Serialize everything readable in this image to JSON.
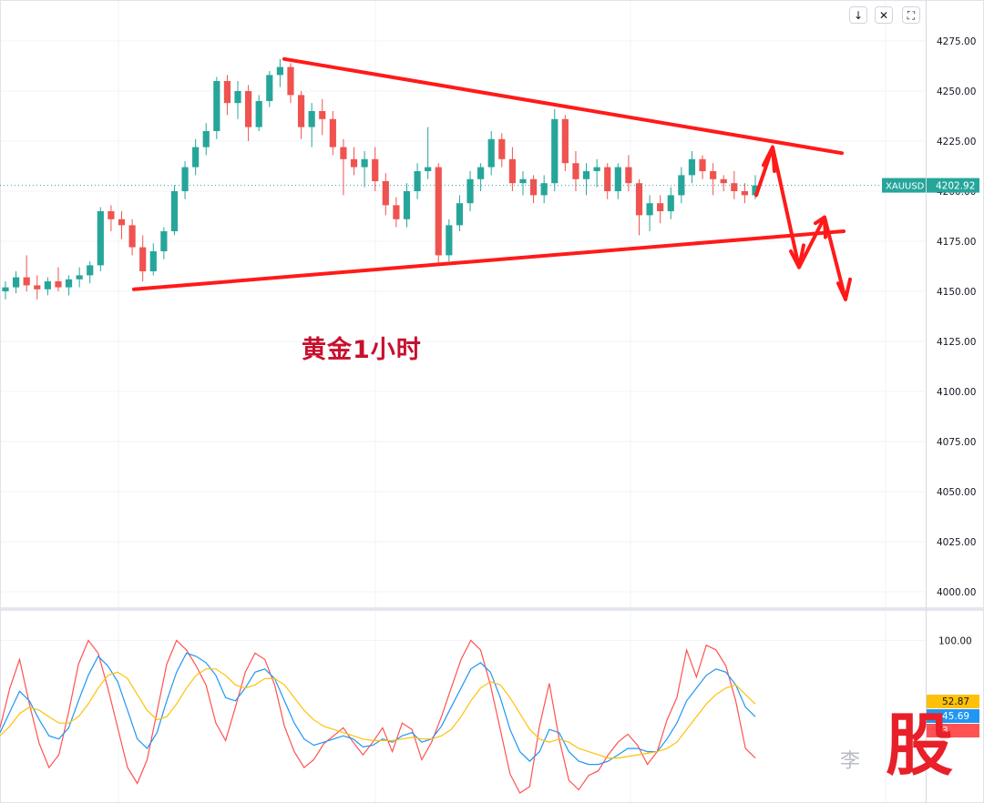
{
  "chart_data": [
    {
      "type": "candlestick",
      "title": "黄金1小时",
      "symbol": "XAUUSD",
      "last_price": "4202.92",
      "ylim": [
        3990,
        4285
      ],
      "yticks": [
        "4275.00",
        "4250.00",
        "4225.00",
        "4200.00",
        "4175.00",
        "4150.00",
        "4125.00",
        "4100.00",
        "4075.00",
        "4050.00",
        "4025.00",
        "4000.00"
      ],
      "up_color": "#26a69a",
      "down_color": "#ef5350",
      "annotation_color": "#ff1a1a",
      "candles_approx": [
        [
          4150,
          4155,
          4146,
          4152
        ],
        [
          4152,
          4160,
          4149,
          4157
        ],
        [
          4157,
          4168,
          4150,
          4153
        ],
        [
          4153,
          4158,
          4146,
          4151
        ],
        [
          4151,
          4157,
          4148,
          4155
        ],
        [
          4155,
          4162,
          4150,
          4152
        ],
        [
          4152,
          4158,
          4148,
          4156
        ],
        [
          4156,
          4162,
          4152,
          4158
        ],
        [
          4158,
          4165,
          4154,
          4163
        ],
        [
          4163,
          4192,
          4160,
          4190
        ],
        [
          4190,
          4193,
          4180,
          4186
        ],
        [
          4186,
          4190,
          4176,
          4183
        ],
        [
          4183,
          4186,
          4168,
          4172
        ],
        [
          4172,
          4178,
          4155,
          4160
        ],
        [
          4160,
          4174,
          4158,
          4170
        ],
        [
          4170,
          4182,
          4166,
          4180
        ],
        [
          4180,
          4203,
          4178,
          4200
        ],
        [
          4200,
          4215,
          4196,
          4212
        ],
        [
          4212,
          4226,
          4208,
          4222
        ],
        [
          4222,
          4234,
          4218,
          4230
        ],
        [
          4230,
          4257,
          4226,
          4255
        ],
        [
          4255,
          4258,
          4238,
          4244
        ],
        [
          4244,
          4255,
          4236,
          4250
        ],
        [
          4250,
          4253,
          4225,
          4232
        ],
        [
          4232,
          4248,
          4230,
          4245
        ],
        [
          4245,
          4260,
          4242,
          4258
        ],
        [
          4258,
          4266,
          4252,
          4262
        ],
        [
          4262,
          4264,
          4244,
          4248
        ],
        [
          4248,
          4250,
          4226,
          4232
        ],
        [
          4232,
          4244,
          4222,
          4240
        ],
        [
          4240,
          4246,
          4228,
          4236
        ],
        [
          4236,
          4240,
          4218,
          4222
        ],
        [
          4222,
          4226,
          4198,
          4216
        ],
        [
          4216,
          4222,
          4208,
          4212
        ],
        [
          4212,
          4220,
          4202,
          4216
        ],
        [
          4216,
          4222,
          4200,
          4205
        ],
        [
          4205,
          4209,
          4188,
          4193
        ],
        [
          4193,
          4197,
          4182,
          4186
        ],
        [
          4186,
          4204,
          4182,
          4200
        ],
        [
          4200,
          4214,
          4196,
          4210
        ],
        [
          4210,
          4232,
          4206,
          4212
        ],
        [
          4212,
          4214,
          4163,
          4168
        ],
        [
          4168,
          4186,
          4165,
          4183
        ],
        [
          4183,
          4198,
          4180,
          4194
        ],
        [
          4194,
          4210,
          4190,
          4206
        ],
        [
          4206,
          4214,
          4200,
          4212
        ],
        [
          4212,
          4230,
          4208,
          4226
        ],
        [
          4226,
          4229,
          4212,
          4216
        ],
        [
          4216,
          4222,
          4200,
          4204
        ],
        [
          4204,
          4210,
          4198,
          4206
        ],
        [
          4206,
          4208,
          4194,
          4198
        ],
        [
          4198,
          4208,
          4194,
          4204
        ],
        [
          4204,
          4241,
          4200,
          4236
        ],
        [
          4236,
          4238,
          4210,
          4214
        ],
        [
          4214,
          4220,
          4200,
          4206
        ],
        [
          4206,
          4214,
          4198,
          4210
        ],
        [
          4210,
          4216,
          4202,
          4212
        ],
        [
          4212,
          4214,
          4196,
          4200
        ],
        [
          4200,
          4214,
          4196,
          4212
        ],
        [
          4212,
          4218,
          4200,
          4204
        ],
        [
          4204,
          4206,
          4178,
          4188
        ],
        [
          4188,
          4198,
          4180,
          4194
        ],
        [
          4194,
          4198,
          4184,
          4190
        ],
        [
          4190,
          4202,
          4186,
          4198
        ],
        [
          4198,
          4212,
          4194,
          4208
        ],
        [
          4208,
          4220,
          4204,
          4216
        ],
        [
          4216,
          4218,
          4206,
          4210
        ],
        [
          4210,
          4214,
          4198,
          4206
        ],
        [
          4206,
          4208,
          4200,
          4204
        ],
        [
          4204,
          4210,
          4196,
          4200
        ],
        [
          4200,
          4204,
          4194,
          4198
        ],
        [
          4198,
          4208,
          4196,
          4202.92
        ]
      ],
      "sub_panel": {
        "type": "oscillator",
        "ylim": [
          0,
          118
        ],
        "yticks": [
          "100.00"
        ],
        "readouts": [
          "52.87",
          "45.69",
          "3"
        ],
        "series": [
          {
            "color": "#ff5252",
            "values": [
              45,
              70,
              88,
              60,
              35,
              20,
              28,
              55,
              85,
              100,
              92,
              70,
              45,
              20,
              10,
              25,
              55,
              85,
              100,
              94,
              84,
              72,
              48,
              37,
              58,
              80,
              92,
              88,
              72,
              46,
              30,
              20,
              25,
              35,
              40,
              45,
              36,
              28,
              36,
              45,
              30,
              48,
              44,
              25,
              36,
              52,
              70,
              88,
              100,
              94,
              72,
              44,
              16,
              4,
              8,
              46,
              73,
              38,
              12,
              6,
              15,
              18,
              28,
              36,
              41,
              34,
              22,
              30,
              50,
              64,
              94,
              77,
              97,
              94,
              84,
              62,
              32,
              26
            ]
          },
          {
            "color": "#2196f3",
            "values": [
              42,
              55,
              68,
              62,
              50,
              40,
              38,
              45,
              62,
              78,
              90,
              84,
              74,
              56,
              38,
              32,
              42,
              62,
              80,
              92,
              90,
              86,
              78,
              64,
              62,
              70,
              80,
              82,
              76,
              62,
              48,
              38,
              34,
              36,
              38,
              40,
              38,
              33,
              34,
              38,
              36,
              40,
              42,
              36,
              38,
              46,
              58,
              70,
              82,
              86,
              80,
              64,
              44,
              30,
              24,
              30,
              44,
              42,
              30,
              24,
              22,
              22,
              24,
              28,
              32,
              32,
              30,
              30,
              38,
              48,
              62,
              70,
              78,
              82,
              80,
              72,
              58,
              52
            ]
          },
          {
            "color": "#ffc107",
            "values": [
              40,
              46,
              54,
              58,
              56,
              52,
              48,
              48,
              52,
              60,
              70,
              78,
              80,
              76,
              66,
              56,
              50,
              52,
              60,
              70,
              78,
              82,
              82,
              78,
              72,
              70,
              72,
              76,
              76,
              72,
              64,
              56,
              50,
              46,
              44,
              42,
              40,
              38,
              37,
              37,
              37,
              38,
              39,
              38,
              38,
              40,
              44,
              52,
              62,
              70,
              74,
              72,
              64,
              54,
              44,
              38,
              36,
              38,
              36,
              32,
              30,
              28,
              26,
              26,
              27,
              28,
              29,
              30,
              32,
              36,
              44,
              52,
              60,
              66,
              70,
              72,
              66,
              60
            ]
          }
        ]
      }
    }
  ],
  "watermark": {
    "text": "李",
    "glyph": "股"
  }
}
